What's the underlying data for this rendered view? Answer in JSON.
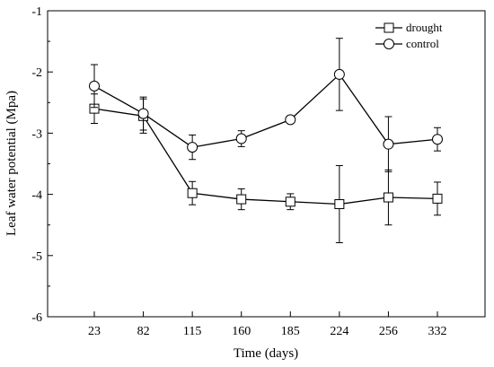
{
  "chart_data": {
    "type": "line",
    "title": "",
    "xlabel": "Time (days)",
    "ylabel": "Leaf water potential (Mpa)",
    "categories": [
      "23",
      "82",
      "115",
      "160",
      "185",
      "224",
      "256",
      "332"
    ],
    "ylim": [
      -6,
      -1
    ],
    "yticks": [
      -6,
      -5,
      -4,
      -3,
      -2,
      -1
    ],
    "yticks_labels": [
      "-6",
      "-5",
      "-4",
      "-3",
      "-2",
      "-1"
    ],
    "grid": false,
    "legend_position": "top-right",
    "series": [
      {
        "name": "drought",
        "marker": "square",
        "values": [
          -2.6,
          -2.72,
          -3.98,
          -4.08,
          -4.12,
          -4.16,
          -4.05,
          -4.07
        ],
        "errors": [
          0.24,
          0.28,
          0.19,
          0.17,
          0.13,
          0.63,
          0.45,
          0.27
        ]
      },
      {
        "name": "control",
        "marker": "circle",
        "values": [
          -2.23,
          -2.68,
          -3.23,
          -3.09,
          -2.78,
          -2.04,
          -3.18,
          -3.1
        ],
        "errors": [
          0.35,
          0.27,
          0.2,
          0.13,
          0.06,
          0.59,
          0.45,
          0.19
        ]
      }
    ],
    "colors": {
      "line": "#000000",
      "marker_fill": "#ffffff",
      "background": "#ffffff"
    }
  }
}
